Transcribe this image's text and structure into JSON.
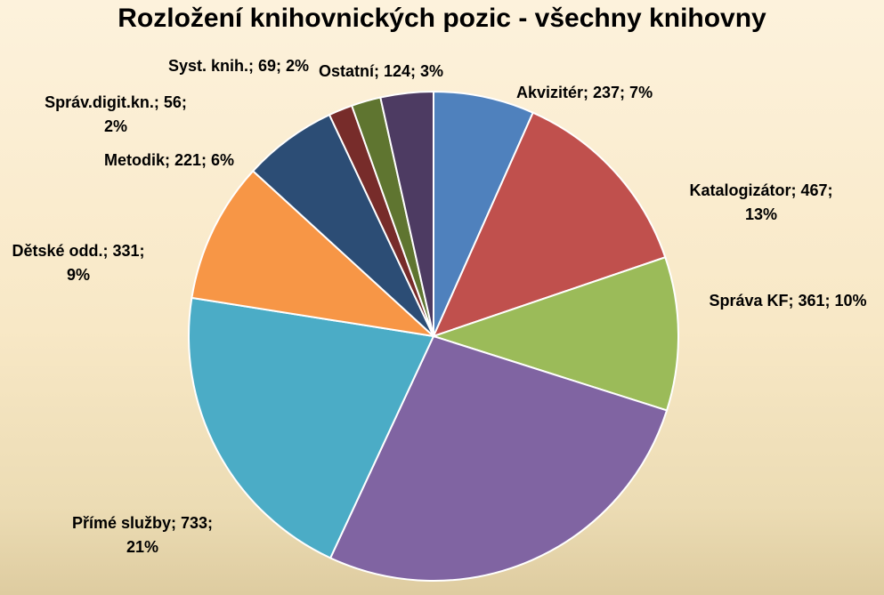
{
  "chart_data": {
    "type": "pie",
    "title": "Rozložení knihovnických pozic - všechny knihovny",
    "categories": [
      "Akvizitér",
      "Katalogizátor",
      "Správa KF",
      "Ostatní",
      "Přímé služby",
      "Dětské odd.",
      "Metodik",
      "Správ.digit.kn.",
      "Syst. knih.",
      "Ostatní"
    ],
    "values": [
      237,
      467,
      361,
      962,
      733,
      331,
      221,
      56,
      69,
      124
    ],
    "colors": [
      "#4f81bd",
      "#c0504d",
      "#9bbb59",
      "#8064a2",
      "#4bacc6",
      "#f79646",
      "#2c4d75",
      "#772c2a",
      "#5f7530",
      "#4d3b62"
    ],
    "labels": [
      [
        "Akvizitér; 237; 7%"
      ],
      [
        "Katalogizátor; 467;",
        "13%"
      ],
      [
        "Správa KF; 361; 10%"
      ],
      [],
      [
        "Přímé služby; 733;",
        "21%"
      ],
      [
        "Dětské odd.; 331;",
        "9%"
      ],
      [
        "Metodik; 221; 6%"
      ],
      [
        "Správ.digit.kn.; 56;",
        "2%"
      ],
      [
        "Syst. knih.; 69; 2%"
      ],
      [
        "Ostatní; 124; 3%"
      ]
    ]
  }
}
